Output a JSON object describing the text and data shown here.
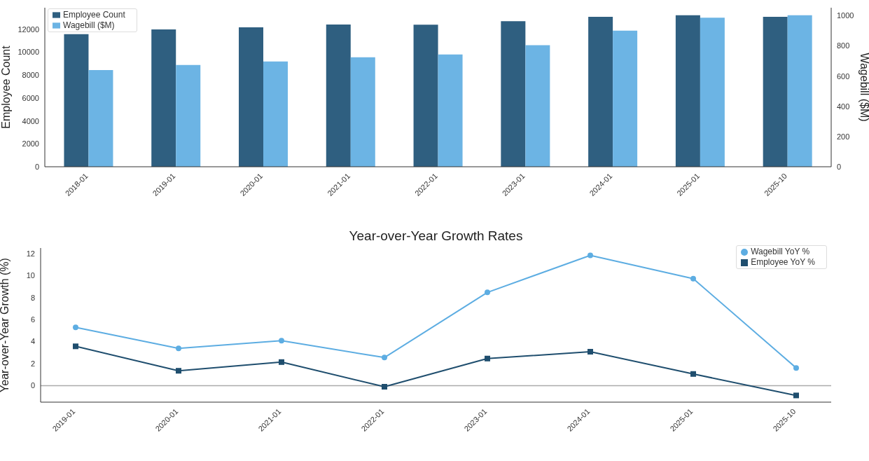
{
  "chart_data": [
    {
      "type": "bar",
      "categories": [
        "2018-01",
        "2019-01",
        "2020-01",
        "2021-01",
        "2022-01",
        "2023-01",
        "2024-01",
        "2025-01",
        "2025-10"
      ],
      "series": [
        {
          "name": "Employee Count",
          "color": "#2f5f80",
          "values": [
            11580,
            12000,
            12170,
            12420,
            12410,
            12710,
            13090,
            13230,
            13100
          ]
        },
        {
          "name": "Wagebill ($M)",
          "color": "#6cb4e4",
          "axis": "y2",
          "values": [
            640,
            674,
            697,
            725,
            743,
            805,
            901,
            987,
            1003
          ]
        }
      ],
      "ylabel": "Employee Count",
      "y2label": "Wagebill ($M)",
      "ylim": [
        0,
        13890
      ],
      "yticks": [
        0,
        2000,
        4000,
        6000,
        8000,
        10000,
        12000
      ],
      "y2lim": [
        0,
        1053
      ],
      "y2ticks": [
        0,
        200,
        400,
        600,
        800,
        1000
      ],
      "legend": "top left",
      "grid": false
    },
    {
      "type": "line",
      "title": "Year-over-Year Growth Rates",
      "categories": [
        "2019-01",
        "2020-01",
        "2021-01",
        "2022-01",
        "2023-01",
        "2024-01",
        "2025-01",
        "2025-10"
      ],
      "series": [
        {
          "name": "Wagebill YoY %",
          "color": "#5dade2",
          "marker": "circle",
          "values": [
            5.29,
            3.39,
            4.08,
            2.55,
            8.47,
            11.83,
            9.72,
            1.61
          ]
        },
        {
          "name": "Employee YoY %",
          "color": "#1f4e6e",
          "marker": "square",
          "values": [
            3.57,
            1.35,
            2.14,
            -0.1,
            2.46,
            3.08,
            1.06,
            -0.89
          ]
        }
      ],
      "ylabel": "Year-over-Year Growth (%)",
      "ylim": [
        -1.5,
        12.5
      ],
      "yticks": [
        0,
        2,
        4,
        6,
        8,
        10,
        12
      ],
      "ref_lines": [
        {
          "axis": "y",
          "value": 0,
          "color": "#aaaaaa"
        }
      ],
      "legend": "top right",
      "grid": false
    }
  ]
}
